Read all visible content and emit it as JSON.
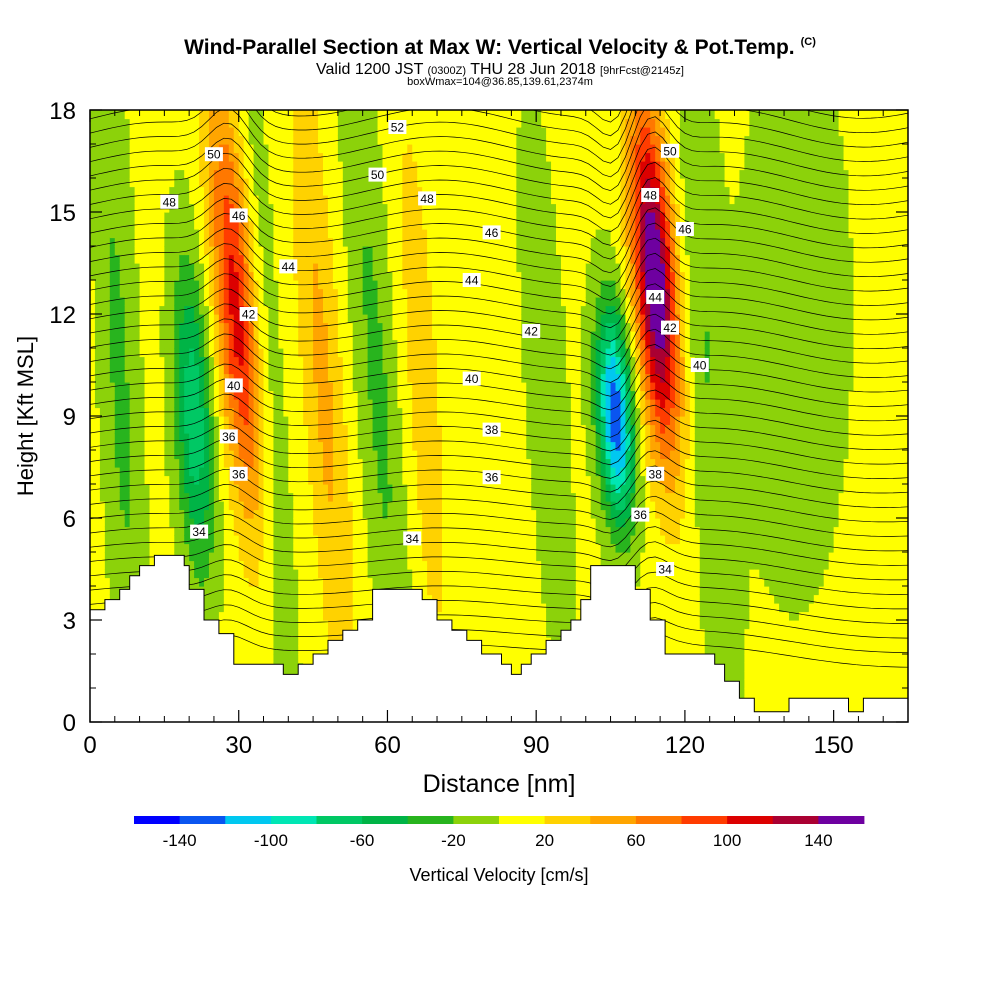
{
  "header": {
    "title": "Wind-Parallel Section at Max W: Vertical Velocity & Pot.Temp.",
    "copyright": "(C)",
    "valid_prefix": "Valid 1200 JST",
    "valid_utc": "(0300Z)",
    "valid_date": "THU 28 Jun 2018",
    "forecast": "[9hrFcst@2145z]",
    "boxinfo": "boxWmax=104@36.85,139.61,2374m"
  },
  "chart_data": {
    "type": "heatmap",
    "xlabel": "Distance [nm]",
    "ylabel": "Height [Kft MSL]",
    "xlim": [
      0,
      165
    ],
    "ylim": [
      0,
      18
    ],
    "x_ticks": [
      "0",
      "30",
      "60",
      "90",
      "120",
      "150"
    ],
    "y_ticks": [
      "0",
      "3",
      "6",
      "9",
      "12",
      "15",
      "18"
    ],
    "colorbar": {
      "label": "Vertical Velocity [cm/s]",
      "tick_labels": [
        "-140",
        "-100",
        "-60",
        "-20",
        "20",
        "60",
        "100",
        "140"
      ],
      "levels": [
        -160,
        -140,
        -120,
        -100,
        -80,
        -60,
        -40,
        -20,
        0,
        20,
        40,
        60,
        80,
        100,
        120,
        140,
        160
      ],
      "colors": [
        "#0000ff",
        "#0a55f0",
        "#00c8f0",
        "#00e6b4",
        "#00c864",
        "#00b446",
        "#28b41e",
        "#8cd20a",
        "#ffff00",
        "#ffd200",
        "#ffa500",
        "#ff7800",
        "#ff3c00",
        "#dc0000",
        "#aa0032",
        "#6e00a0"
      ]
    },
    "updraft_cores_cms": [
      {
        "x": 28,
        "z_center": 12,
        "peak": 110
      },
      {
        "x": 113,
        "z_center": 13,
        "peak": 160
      }
    ],
    "downdraft_cores_cms": [
      {
        "x": 106,
        "z_center": 9,
        "peak": -140
      },
      {
        "x": 21,
        "z_center": 9,
        "peak": -80
      }
    ],
    "theta_contour_labels": [
      {
        "text": "34",
        "x": 22,
        "y": 5.6
      },
      {
        "text": "34",
        "x": 65,
        "y": 5.4
      },
      {
        "text": "34",
        "x": 116,
        "y": 4.5
      },
      {
        "text": "36",
        "x": 30,
        "y": 7.3
      },
      {
        "text": "36",
        "x": 28,
        "y": 8.4
      },
      {
        "text": "36",
        "x": 81,
        "y": 7.2
      },
      {
        "text": "36",
        "x": 111,
        "y": 6.1
      },
      {
        "text": "38",
        "x": 81,
        "y": 8.6
      },
      {
        "text": "38",
        "x": 114,
        "y": 7.3
      },
      {
        "text": "40",
        "x": 29,
        "y": 9.9
      },
      {
        "text": "40",
        "x": 77,
        "y": 10.1
      },
      {
        "text": "40",
        "x": 123,
        "y": 10.5
      },
      {
        "text": "42",
        "x": 32,
        "y": 12
      },
      {
        "text": "42",
        "x": 89,
        "y": 11.5
      },
      {
        "text": "42",
        "x": 117,
        "y": 11.6
      },
      {
        "text": "44",
        "x": 40,
        "y": 13.4
      },
      {
        "text": "44",
        "x": 77,
        "y": 13
      },
      {
        "text": "44",
        "x": 114,
        "y": 12.5
      },
      {
        "text": "46",
        "x": 30,
        "y": 14.9
      },
      {
        "text": "46",
        "x": 81,
        "y": 14.4
      },
      {
        "text": "46",
        "x": 120,
        "y": 14.5
      },
      {
        "text": "48",
        "x": 16,
        "y": 15.3
      },
      {
        "text": "48",
        "x": 68,
        "y": 15.4
      },
      {
        "text": "48",
        "x": 113,
        "y": 15.5
      },
      {
        "text": "50",
        "x": 25,
        "y": 16.7
      },
      {
        "text": "50",
        "x": 58,
        "y": 16.1
      },
      {
        "text": "50",
        "x": 117,
        "y": 16.8
      },
      {
        "text": "52",
        "x": 62,
        "y": 17.5
      }
    ],
    "terrain_kft": [
      {
        "x": 0,
        "z": 3.3
      },
      {
        "x": 3,
        "z": 3.3
      },
      {
        "x": 3,
        "z": 3.6
      },
      {
        "x": 6,
        "z": 3.6
      },
      {
        "x": 6,
        "z": 3.9
      },
      {
        "x": 8,
        "z": 3.9
      },
      {
        "x": 8,
        "z": 4.3
      },
      {
        "x": 10,
        "z": 4.3
      },
      {
        "x": 10,
        "z": 4.6
      },
      {
        "x": 13,
        "z": 4.6
      },
      {
        "x": 13,
        "z": 4.9
      },
      {
        "x": 19,
        "z": 4.9
      },
      {
        "x": 19,
        "z": 4.6
      },
      {
        "x": 20,
        "z": 4.6
      },
      {
        "x": 20,
        "z": 3.9
      },
      {
        "x": 23,
        "z": 3.9
      },
      {
        "x": 23,
        "z": 3.0
      },
      {
        "x": 26,
        "z": 3.0
      },
      {
        "x": 26,
        "z": 2.6
      },
      {
        "x": 29,
        "z": 2.6
      },
      {
        "x": 29,
        "z": 1.7
      },
      {
        "x": 39,
        "z": 1.7
      },
      {
        "x": 39,
        "z": 1.4
      },
      {
        "x": 42,
        "z": 1.4
      },
      {
        "x": 42,
        "z": 1.7
      },
      {
        "x": 45,
        "z": 1.7
      },
      {
        "x": 45,
        "z": 2.0
      },
      {
        "x": 48,
        "z": 2.0
      },
      {
        "x": 48,
        "z": 2.4
      },
      {
        "x": 51,
        "z": 2.4
      },
      {
        "x": 51,
        "z": 2.7
      },
      {
        "x": 54,
        "z": 2.7
      },
      {
        "x": 54,
        "z": 3.0
      },
      {
        "x": 57,
        "z": 3.0
      },
      {
        "x": 57,
        "z": 3.9
      },
      {
        "x": 67,
        "z": 3.9
      },
      {
        "x": 67,
        "z": 3.6
      },
      {
        "x": 70,
        "z": 3.6
      },
      {
        "x": 70,
        "z": 3.0
      },
      {
        "x": 73,
        "z": 3.0
      },
      {
        "x": 73,
        "z": 2.7
      },
      {
        "x": 76,
        "z": 2.7
      },
      {
        "x": 76,
        "z": 2.4
      },
      {
        "x": 79,
        "z": 2.4
      },
      {
        "x": 79,
        "z": 2.0
      },
      {
        "x": 83,
        "z": 2.0
      },
      {
        "x": 83,
        "z": 1.7
      },
      {
        "x": 85,
        "z": 1.7
      },
      {
        "x": 85,
        "z": 1.4
      },
      {
        "x": 87,
        "z": 1.4
      },
      {
        "x": 87,
        "z": 1.7
      },
      {
        "x": 89,
        "z": 1.7
      },
      {
        "x": 89,
        "z": 2.0
      },
      {
        "x": 92,
        "z": 2.0
      },
      {
        "x": 92,
        "z": 2.4
      },
      {
        "x": 95,
        "z": 2.4
      },
      {
        "x": 95,
        "z": 2.7
      },
      {
        "x": 97,
        "z": 2.7
      },
      {
        "x": 97,
        "z": 3.0
      },
      {
        "x": 99,
        "z": 3.0
      },
      {
        "x": 99,
        "z": 3.6
      },
      {
        "x": 101,
        "z": 3.6
      },
      {
        "x": 101,
        "z": 4.6
      },
      {
        "x": 110,
        "z": 4.6
      },
      {
        "x": 110,
        "z": 3.9
      },
      {
        "x": 113,
        "z": 3.9
      },
      {
        "x": 113,
        "z": 3.0
      },
      {
        "x": 116,
        "z": 3.0
      },
      {
        "x": 116,
        "z": 2.0
      },
      {
        "x": 126,
        "z": 2.0
      },
      {
        "x": 126,
        "z": 1.7
      },
      {
        "x": 128,
        "z": 1.7
      },
      {
        "x": 128,
        "z": 1.2
      },
      {
        "x": 131,
        "z": 1.2
      },
      {
        "x": 131,
        "z": 0.7
      },
      {
        "x": 134,
        "z": 0.7
      },
      {
        "x": 134,
        "z": 0.3
      },
      {
        "x": 141,
        "z": 0.3
      },
      {
        "x": 141,
        "z": 0.7
      },
      {
        "x": 153,
        "z": 0.7
      },
      {
        "x": 153,
        "z": 0.3
      },
      {
        "x": 156,
        "z": 0.3
      },
      {
        "x": 156,
        "z": 0.7
      },
      {
        "x": 165,
        "z": 0.7
      }
    ]
  }
}
